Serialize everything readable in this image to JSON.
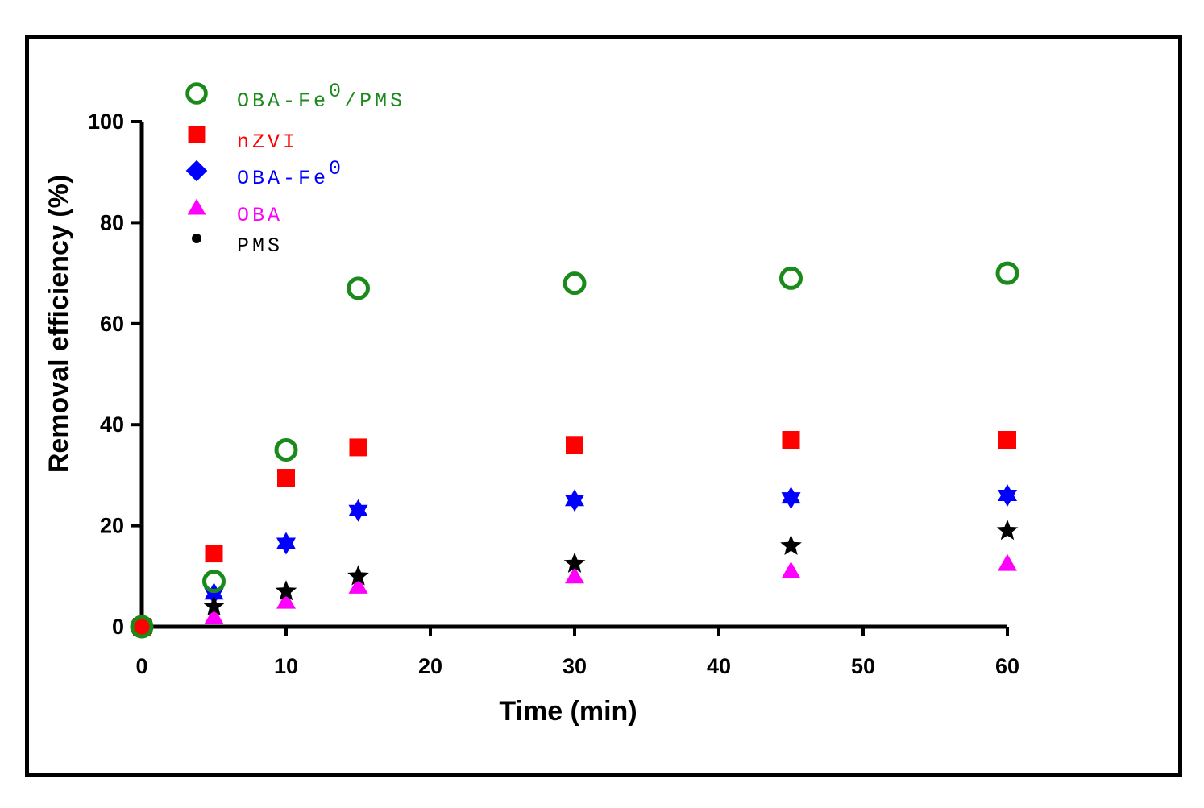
{
  "chart_data": {
    "type": "scatter",
    "title": "",
    "xlabel": "Time (min)",
    "ylabel": "Removal efficiency (%)",
    "xlim": [
      0,
      60
    ],
    "ylim": [
      0,
      100
    ],
    "xticks": [
      0,
      10,
      20,
      30,
      40,
      50,
      60
    ],
    "yticks": [
      0,
      20,
      40,
      60,
      80,
      100
    ],
    "x": [
      0,
      5,
      10,
      15,
      30,
      45,
      60
    ],
    "legend_position": "top-left",
    "series": [
      {
        "name": "OBA-Fe0/PMS",
        "label_main": "OBA",
        "label_sep": "-",
        "label_fe": "Fe",
        "label_sup": "0",
        "label_tail": "/PMS",
        "marker": "open-circle",
        "color": "#1a8a1a",
        "values": [
          0,
          9,
          35,
          67,
          68,
          69,
          70
        ]
      },
      {
        "name": "nZVI",
        "label_main": "nZVI",
        "marker": "square",
        "color": "#ff0000",
        "values": [
          0,
          14.5,
          29.5,
          35.5,
          36,
          37,
          37
        ]
      },
      {
        "name": "OBA-Fe0",
        "label_main": "OBA",
        "label_sep": "-",
        "label_fe": "Fe",
        "label_sup": "0",
        "marker": "diamond",
        "color": "#0000ff",
        "values": [
          0,
          6.5,
          16.5,
          23,
          25,
          25.5,
          26
        ]
      },
      {
        "name": "OBA",
        "label_main": "OBA",
        "marker": "triangle",
        "color": "#ff00ff",
        "values": [
          0,
          2,
          5,
          8,
          10,
          11,
          12.5
        ]
      },
      {
        "name": "PMS",
        "label_main": "PMS",
        "marker": "star",
        "color": "#000000",
        "values": [
          0,
          4,
          7,
          10,
          12.5,
          16,
          19
        ]
      }
    ]
  }
}
